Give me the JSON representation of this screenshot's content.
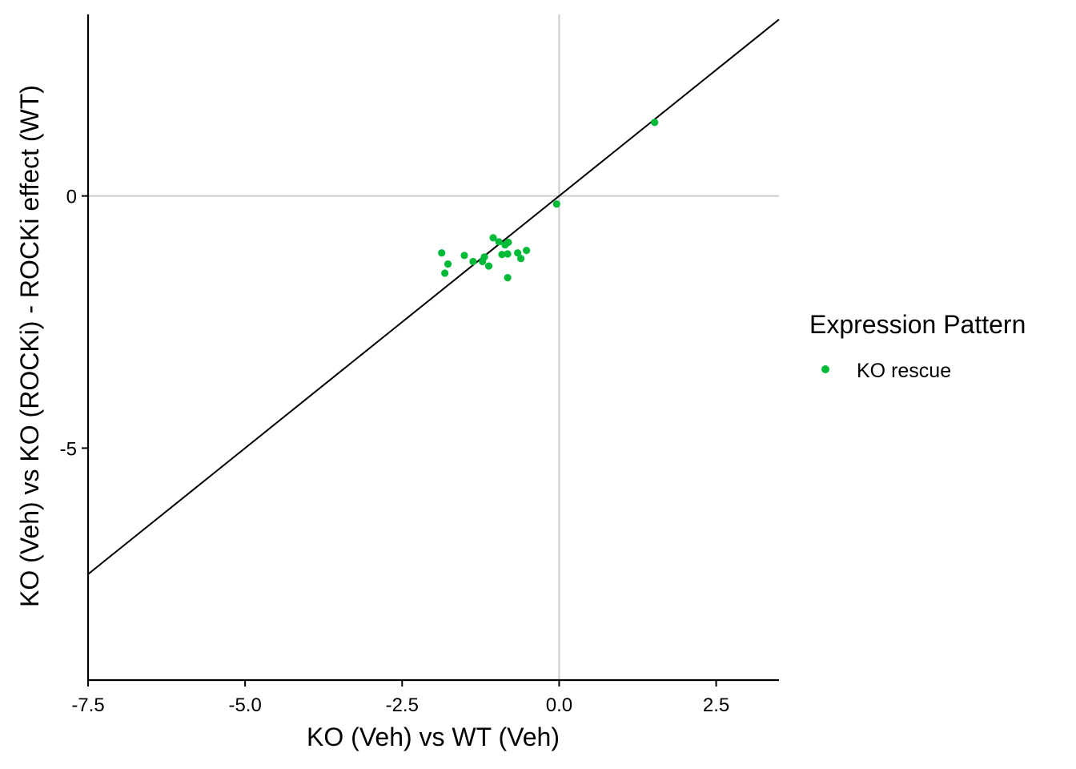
{
  "chart_data": {
    "type": "scatter",
    "xlabel": "KO (Veh) vs WT (Veh)",
    "ylabel": "KO (Veh) vs KO (ROCKi) - ROCKi effect (WT)",
    "xlim": [
      -7.5,
      3.5
    ],
    "ylim": [
      -9.6,
      3.6
    ],
    "x_ticks": [
      -7.5,
      -5.0,
      -2.5,
      0.0,
      2.5
    ],
    "x_tick_labels": [
      "-7.5",
      "-5.0",
      "-2.5",
      "0.0",
      "2.5"
    ],
    "y_ticks": [
      0,
      -5
    ],
    "y_tick_labels": [
      "0",
      "-5"
    ],
    "reference_lines": {
      "x0": true,
      "y0": true,
      "identity": true
    },
    "legend": {
      "title": "Expression Pattern",
      "position": "right"
    },
    "series": [
      {
        "name": "KO rescue",
        "color": "#00BA38",
        "points": [
          {
            "x": 1.52,
            "y": 1.46
          },
          {
            "x": -0.04,
            "y": -0.16
          },
          {
            "x": -1.87,
            "y": -1.13
          },
          {
            "x": -1.82,
            "y": -1.53
          },
          {
            "x": -1.77,
            "y": -1.35
          },
          {
            "x": -1.51,
            "y": -1.18
          },
          {
            "x": -1.37,
            "y": -1.3
          },
          {
            "x": -1.22,
            "y": -1.3
          },
          {
            "x": -1.19,
            "y": -1.21
          },
          {
            "x": -1.12,
            "y": -1.39
          },
          {
            "x": -1.05,
            "y": -0.83
          },
          {
            "x": -0.96,
            "y": -0.91
          },
          {
            "x": -0.91,
            "y": -1.16
          },
          {
            "x": -0.86,
            "y": -0.97
          },
          {
            "x": -0.81,
            "y": -0.92
          },
          {
            "x": -0.82,
            "y": -1.15
          },
          {
            "x": -0.82,
            "y": -1.62
          },
          {
            "x": -0.66,
            "y": -1.13
          },
          {
            "x": -0.61,
            "y": -1.24
          },
          {
            "x": -0.52,
            "y": -1.08
          }
        ]
      }
    ]
  }
}
